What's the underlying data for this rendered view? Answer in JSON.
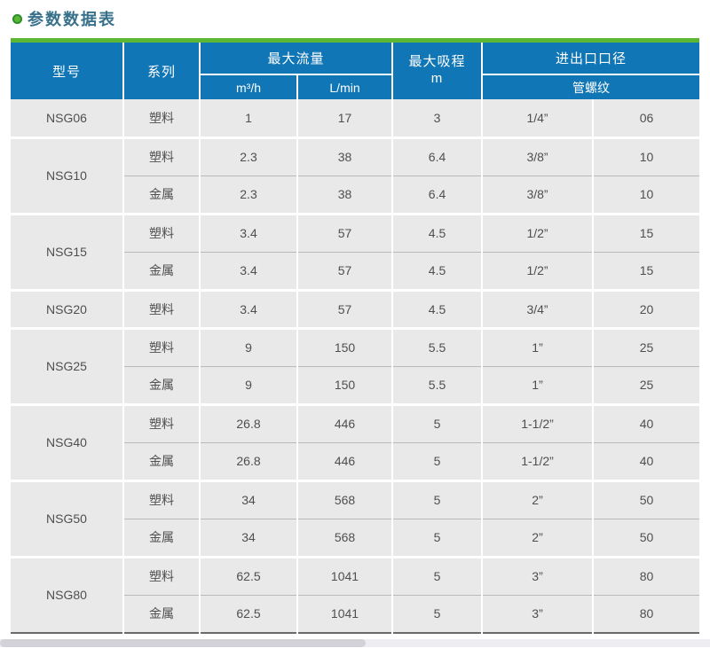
{
  "page": {
    "title": "参数数据表"
  },
  "colors": {
    "header_bg": "#1176b5",
    "accent_green": "#5cb832",
    "row_bg": "#e9e9e9",
    "title_color": "#38708a"
  },
  "table": {
    "header": {
      "model": "型号",
      "series": "系列",
      "max_flow": "最大流量",
      "flow_unit_m3h": "m³/h",
      "flow_unit_lmin": "L/min",
      "max_suction_line1": "最大吸程",
      "max_suction_line2": "m",
      "port": "进出口口径",
      "thread": "管螺纹"
    },
    "groups": [
      {
        "model": "NSG06",
        "rows": [
          [
            "塑料",
            "1",
            "17",
            "3",
            "1/4”",
            "06"
          ]
        ]
      },
      {
        "model": "NSG10",
        "rows": [
          [
            "塑料",
            "2.3",
            "38",
            "6.4",
            "3/8”",
            "10"
          ],
          [
            "金属",
            "2.3",
            "38",
            "6.4",
            "3/8”",
            "10"
          ]
        ]
      },
      {
        "model": "NSG15",
        "rows": [
          [
            "塑料",
            "3.4",
            "57",
            "4.5",
            "1/2”",
            "15"
          ],
          [
            "金属",
            "3.4",
            "57",
            "4.5",
            "1/2”",
            "15"
          ]
        ]
      },
      {
        "model": "NSG20",
        "rows": [
          [
            "塑料",
            "3.4",
            "57",
            "4.5",
            "3/4”",
            "20"
          ]
        ]
      },
      {
        "model": "NSG25",
        "rows": [
          [
            "塑料",
            "9",
            "150",
            "5.5",
            "1”",
            "25"
          ],
          [
            "金属",
            "9",
            "150",
            "5.5",
            "1”",
            "25"
          ]
        ]
      },
      {
        "model": "NSG40",
        "rows": [
          [
            "塑料",
            "26.8",
            "446",
            "5",
            "1-1/2”",
            "40"
          ],
          [
            "金属",
            "26.8",
            "446",
            "5",
            "1-1/2”",
            "40"
          ]
        ]
      },
      {
        "model": "NSG50",
        "rows": [
          [
            "塑料",
            "34",
            "568",
            "5",
            "2”",
            "50"
          ],
          [
            "金属",
            "34",
            "568",
            "5",
            "2”",
            "50"
          ]
        ]
      },
      {
        "model": "NSG80",
        "rows": [
          [
            "塑料",
            "62.5",
            "1041",
            "5",
            "3”",
            "80"
          ],
          [
            "金属",
            "62.5",
            "1041",
            "5",
            "3”",
            "80"
          ]
        ]
      }
    ]
  }
}
